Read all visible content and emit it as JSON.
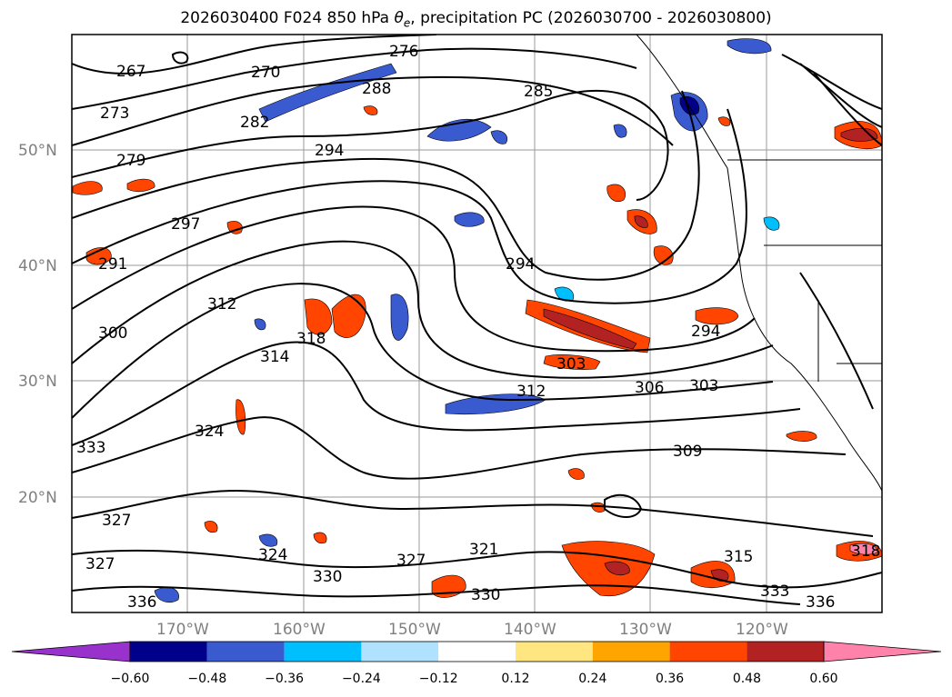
{
  "title": {
    "prefix": "2026030400 F024 850 hPa ",
    "symbol": "θ",
    "subscript": "e",
    "suffix": ", precipitation PC (2026030700 - 2026030800)"
  },
  "map": {
    "projection": "lat-lon",
    "lon_range": [
      -180,
      -110
    ],
    "lat_range": [
      10,
      60
    ],
    "lat_ticks": [
      "50°N",
      "40°N",
      "30°N",
      "20°N"
    ],
    "lon_ticks": [
      "170°W",
      "160°W",
      "150°W",
      "140°W",
      "130°W",
      "120°W"
    ],
    "gridlines": true,
    "contour_variable": "850 hPa equivalent potential temperature (K)",
    "contour_labels": [
      "267",
      "270",
      "276",
      "273",
      "288",
      "285",
      "279",
      "282",
      "294",
      "297",
      "291",
      "300",
      "312",
      "318",
      "314",
      "312",
      "306",
      "303",
      "309",
      "303",
      "294",
      "333",
      "324",
      "327",
      "327",
      "324",
      "330",
      "327",
      "321",
      "330",
      "336",
      "336",
      "333",
      "315",
      "318",
      "294"
    ]
  },
  "colorbar": {
    "ticks": [
      "−0.60",
      "−0.48",
      "−0.36",
      "−0.24",
      "−0.12",
      "0.12",
      "0.24",
      "0.36",
      "0.48",
      "0.60"
    ],
    "colors": [
      "#9932cc",
      "#00008b",
      "#3a5bd0",
      "#00bfff",
      "#b0e2ff",
      "#ffffff",
      "#ffe680",
      "#ffa500",
      "#ff4500",
      "#b22222",
      "#ff82ab"
    ],
    "extend": "both"
  }
}
